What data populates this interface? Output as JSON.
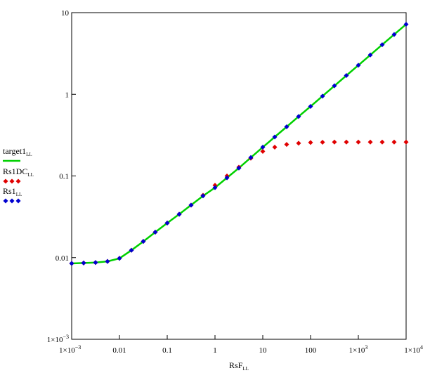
{
  "chart_data": {
    "type": "scatter",
    "xlabel": "RsF",
    "xlabel_sub": "LL",
    "x_scale": "log",
    "y_scale": "log",
    "xlim": [
      0.001,
      10000
    ],
    "ylim": [
      0.001,
      10
    ],
    "x_ticks": [
      {
        "value": 0.001,
        "label": "1×10",
        "exp": "−3"
      },
      {
        "value": 0.01,
        "label": "0.01",
        "exp": ""
      },
      {
        "value": 0.1,
        "label": "0.1",
        "exp": ""
      },
      {
        "value": 1,
        "label": "1",
        "exp": ""
      },
      {
        "value": 10,
        "label": "10",
        "exp": ""
      },
      {
        "value": 100,
        "label": "100",
        "exp": ""
      },
      {
        "value": 1000,
        "label": "1×10",
        "exp": "3"
      },
      {
        "value": 10000,
        "label": "1×10",
        "exp": "4"
      }
    ],
    "y_ticks": [
      {
        "value": 0.001,
        "label": "1×10",
        "exp": "−3"
      },
      {
        "value": 0.01,
        "label": "0.01",
        "exp": ""
      },
      {
        "value": 0.1,
        "label": "0.1",
        "exp": ""
      },
      {
        "value": 1,
        "label": "1",
        "exp": ""
      },
      {
        "value": 10,
        "label": "10",
        "exp": ""
      }
    ],
    "grid": false,
    "legend_position": "left",
    "series": [
      {
        "name": "target1",
        "name_sub": "LL",
        "style": "line",
        "color": "#00d000",
        "x": [
          0.001,
          0.00178,
          0.00316,
          0.00562,
          0.01,
          0.0178,
          0.0316,
          0.0562,
          0.1,
          0.178,
          0.316,
          0.562,
          1,
          1.78,
          3.16,
          5.62,
          10,
          17.8,
          31.6,
          56.2,
          100,
          178,
          316,
          562,
          1000,
          1780,
          3160,
          5620,
          10000
        ],
        "y": [
          0.0085,
          0.0086,
          0.0087,
          0.009,
          0.0098,
          0.0123,
          0.0158,
          0.0205,
          0.0265,
          0.034,
          0.044,
          0.057,
          0.072,
          0.095,
          0.125,
          0.168,
          0.225,
          0.3,
          0.4,
          0.535,
          0.71,
          0.95,
          1.27,
          1.7,
          2.27,
          3.03,
          4.05,
          5.4,
          7.2
        ]
      },
      {
        "name": "Rs1DC",
        "name_sub": "LL",
        "style": "markers",
        "color": "#e00000",
        "x": [
          0.001,
          0.00178,
          0.00316,
          0.00562,
          0.01,
          0.0178,
          0.0316,
          0.0562,
          0.1,
          0.178,
          0.316,
          0.562,
          1,
          1.78,
          3.16,
          5.62,
          10,
          17.8,
          31.6,
          56.2,
          100,
          178,
          316,
          562,
          1000,
          1780,
          3160,
          5620,
          10000
        ],
        "y": [
          0.0085,
          0.0086,
          0.0087,
          0.009,
          0.0098,
          0.0123,
          0.0158,
          0.0205,
          0.0265,
          0.034,
          0.044,
          0.058,
          0.077,
          0.1,
          0.128,
          0.165,
          0.2,
          0.225,
          0.243,
          0.252,
          0.257,
          0.259,
          0.26,
          0.26,
          0.26,
          0.26,
          0.26,
          0.26,
          0.26
        ]
      },
      {
        "name": "Rs1",
        "name_sub": "LL",
        "style": "markers",
        "color": "#0000d0",
        "x": [
          0.001,
          0.00178,
          0.00316,
          0.00562,
          0.01,
          0.0178,
          0.0316,
          0.0562,
          0.1,
          0.178,
          0.316,
          0.562,
          1,
          1.78,
          3.16,
          5.62,
          10,
          17.8,
          31.6,
          56.2,
          100,
          178,
          316,
          562,
          1000,
          1780,
          3160,
          5620,
          10000
        ],
        "y": [
          0.0085,
          0.0086,
          0.0087,
          0.009,
          0.0098,
          0.0123,
          0.0158,
          0.0205,
          0.0265,
          0.034,
          0.044,
          0.057,
          0.072,
          0.095,
          0.125,
          0.168,
          0.225,
          0.3,
          0.4,
          0.535,
          0.71,
          0.95,
          1.27,
          1.7,
          2.27,
          3.03,
          4.05,
          5.4,
          7.2
        ]
      }
    ]
  }
}
